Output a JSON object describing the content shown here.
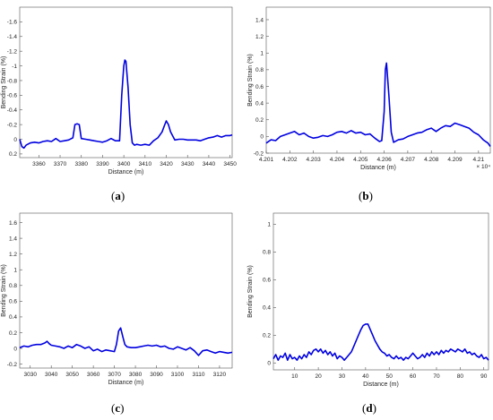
{
  "panels": [
    {
      "label_open": "(",
      "label_letter": "a",
      "label_close": ")"
    },
    {
      "label_open": "(",
      "label_letter": "b",
      "label_close": ")"
    },
    {
      "label_open": "(",
      "label_letter": "c",
      "label_close": ")"
    },
    {
      "label_open": "(",
      "label_letter": "d",
      "label_close": ")"
    }
  ],
  "chart_data": [
    {
      "type": "line",
      "xlabel": "Distance (m)",
      "ylabel": "Bending Strain (%)",
      "xlim": [
        3351,
        3451
      ],
      "ylim": [
        0.25,
        -1.8
      ],
      "y_reversed": true,
      "grid": false,
      "color": "#0000e0",
      "xticks": [
        3360,
        3370,
        3380,
        3390,
        3400,
        3410,
        3420,
        3430,
        3440,
        3450
      ],
      "yticks": [
        -1.6,
        -1.4,
        -1.2,
        -1,
        -0.8,
        -0.6,
        -0.4,
        -0.2,
        0,
        0.2
      ],
      "ytick_labels": [
        "-1.6",
        "-1.4",
        "-1.2",
        "-1",
        "-0.8",
        "-0.6",
        "-0.4",
        "-0.2",
        "0",
        "0.2"
      ],
      "x": [
        3351,
        3352,
        3353,
        3354,
        3356,
        3358,
        3360,
        3362,
        3364,
        3366,
        3368,
        3370,
        3372,
        3374,
        3376,
        3377,
        3378,
        3379,
        3380,
        3382,
        3384,
        3386,
        3388,
        3390,
        3392,
        3394,
        3396,
        3398,
        3399,
        3400,
        3400.5,
        3401,
        3402,
        3403,
        3404,
        3405,
        3406,
        3408,
        3410,
        3412,
        3414,
        3416,
        3418,
        3419,
        3420,
        3421,
        3422,
        3424,
        3426,
        3428,
        3430,
        3432,
        3434,
        3436,
        3438,
        3440,
        3442,
        3444,
        3446,
        3448,
        3450,
        3451
      ],
      "y": [
        0,
        0.1,
        0.12,
        0.08,
        0.05,
        0.04,
        0.05,
        0.03,
        0.02,
        0.03,
        -0.01,
        0.03,
        0.02,
        0.01,
        -0.02,
        -0.2,
        -0.21,
        -0.2,
        -0.01,
        0,
        0.01,
        0.02,
        0.03,
        0.04,
        0.02,
        -0.01,
        0.02,
        0.02,
        -0.6,
        -1.0,
        -1.08,
        -1.06,
        -0.7,
        -0.2,
        0.05,
        0.08,
        0.07,
        0.08,
        0.07,
        0.08,
        0.02,
        -0.02,
        -0.1,
        -0.18,
        -0.25,
        -0.2,
        -0.1,
        0.01,
        0,
        0,
        0.01,
        0.01,
        0.01,
        0.02,
        0,
        -0.02,
        -0.03,
        -0.05,
        -0.03,
        -0.05,
        -0.05,
        -0.06
      ]
    },
    {
      "type": "line",
      "xlabel": "Distance (m)",
      "ylabel": "Bending Strain (%)",
      "x_exponent_label": "× 10⁴",
      "xlim": [
        4.201,
        4.2105
      ],
      "ylim": [
        -0.2,
        1.55
      ],
      "grid": false,
      "color": "#0000e0",
      "xticks": [
        4.201,
        4.202,
        4.203,
        4.204,
        4.205,
        4.206,
        4.207,
        4.208,
        4.209,
        4.21
      ],
      "xtick_labels": [
        "4.201",
        "4.202",
        "4.203",
        "4.204",
        "4.205",
        "4.206",
        "4.207",
        "4.208",
        "4.209",
        "4.21"
      ],
      "yticks": [
        -0.2,
        0,
        0.2,
        0.4,
        0.6,
        0.8,
        1,
        1.2,
        1.4
      ],
      "ytick_labels": [
        "-0.2",
        "0",
        "0.2",
        "0.4",
        "0.6",
        "0.8",
        "1",
        "1.2",
        "1.4"
      ],
      "x": [
        4.201,
        4.2012,
        4.2014,
        4.2016,
        4.2018,
        4.202,
        4.2022,
        4.2024,
        4.2026,
        4.2028,
        4.203,
        4.2032,
        4.2034,
        4.2036,
        4.2038,
        4.204,
        4.2042,
        4.2044,
        4.2046,
        4.2048,
        4.205,
        4.2052,
        4.2054,
        4.2056,
        4.2058,
        4.2059,
        4.206,
        4.20605,
        4.2061,
        4.2062,
        4.2063,
        4.2064,
        4.2066,
        4.2068,
        4.207,
        4.2072,
        4.2074,
        4.2076,
        4.2078,
        4.208,
        4.2082,
        4.2084,
        4.2086,
        4.2088,
        4.209,
        4.2092,
        4.2094,
        4.2096,
        4.2098,
        4.21,
        4.2102,
        4.2104,
        4.2105
      ],
      "y": [
        -0.08,
        -0.04,
        -0.05,
        0,
        0.02,
        0.04,
        0.06,
        0.02,
        0.04,
        0,
        -0.02,
        -0.01,
        0.01,
        0,
        0.02,
        0.05,
        0.06,
        0.04,
        0.07,
        0.04,
        0.05,
        0.02,
        0.03,
        -0.02,
        -0.06,
        -0.05,
        0.3,
        0.8,
        0.88,
        0.5,
        0.05,
        -0.07,
        -0.04,
        -0.03,
        0,
        0.02,
        0.04,
        0.05,
        0.08,
        0.1,
        0.06,
        0.1,
        0.13,
        0.12,
        0.16,
        0.14,
        0.12,
        0.1,
        0.05,
        0.02,
        -0.04,
        -0.08,
        -0.12
      ]
    },
    {
      "type": "line",
      "xlabel": "Distance (m)",
      "ylabel": "Bending Strain (%)",
      "xlim": [
        3025,
        3126
      ],
      "ylim": [
        -0.25,
        1.72
      ],
      "grid": false,
      "color": "#0000e0",
      "xticks": [
        3030,
        3040,
        3050,
        3060,
        3070,
        3080,
        3090,
        3100,
        3110,
        3120
      ],
      "yticks": [
        -0.2,
        0,
        0.2,
        0.4,
        0.6,
        0.8,
        1,
        1.2,
        1.4,
        1.6
      ],
      "ytick_labels": [
        "-0.2",
        "0",
        "0.2",
        "0.4",
        "0.6",
        "0.8",
        "1",
        "1.2",
        "1.4",
        "1.6"
      ],
      "x": [
        3025,
        3027,
        3029,
        3031,
        3033,
        3035,
        3037,
        3038,
        3039,
        3040,
        3042,
        3044,
        3046,
        3048,
        3050,
        3052,
        3054,
        3056,
        3058,
        3060,
        3062,
        3064,
        3066,
        3068,
        3070,
        3071,
        3072,
        3073,
        3074,
        3075,
        3076,
        3078,
        3080,
        3082,
        3084,
        3086,
        3088,
        3090,
        3092,
        3094,
        3096,
        3098,
        3100,
        3102,
        3104,
        3106,
        3108,
        3110,
        3112,
        3114,
        3116,
        3118,
        3120,
        3122,
        3124,
        3126
      ],
      "y": [
        0.01,
        0.03,
        0.02,
        0.04,
        0.05,
        0.05,
        0.07,
        0.09,
        0.06,
        0.04,
        0.03,
        0.02,
        0,
        0.03,
        0.01,
        0.05,
        0.03,
        0,
        0.02,
        -0.03,
        -0.01,
        -0.04,
        -0.02,
        -0.03,
        -0.04,
        0.05,
        0.22,
        0.26,
        0.15,
        0.05,
        0.02,
        0.01,
        0.01,
        0.02,
        0.03,
        0.04,
        0.03,
        0.04,
        0.02,
        0.03,
        0,
        -0.01,
        0.02,
        0,
        -0.02,
        0.01,
        -0.03,
        -0.09,
        -0.03,
        -0.02,
        -0.04,
        -0.06,
        -0.04,
        -0.05,
        -0.06,
        -0.05
      ]
    },
    {
      "type": "line",
      "xlabel": "Distance (m)",
      "ylabel": "Bending Strain (%)",
      "xlim": [
        1,
        92
      ],
      "ylim": [
        -0.05,
        1.08
      ],
      "grid": false,
      "color": "#0000e0",
      "xticks": [
        10,
        20,
        30,
        40,
        50,
        60,
        70,
        80,
        90
      ],
      "yticks": [
        0,
        0.2,
        0.4,
        0.6,
        0.8,
        1
      ],
      "ytick_labels": [
        "0",
        "0.2",
        "0.4",
        "0.6",
        "0.8",
        "1"
      ],
      "x": [
        1,
        2,
        3,
        4,
        5,
        6,
        7,
        8,
        9,
        10,
        11,
        12,
        13,
        14,
        15,
        16,
        17,
        18,
        19,
        20,
        21,
        22,
        23,
        24,
        25,
        26,
        27,
        28,
        29,
        30,
        31,
        32,
        33,
        34,
        35,
        36,
        37,
        38,
        39,
        40,
        41,
        42,
        43,
        44,
        45,
        46,
        47,
        48,
        49,
        50,
        51,
        52,
        53,
        54,
        55,
        56,
        57,
        58,
        59,
        60,
        61,
        62,
        63,
        64,
        65,
        66,
        67,
        68,
        69,
        70,
        71,
        72,
        73,
        74,
        75,
        76,
        77,
        78,
        79,
        80,
        81,
        82,
        83,
        84,
        85,
        86,
        87,
        88,
        89,
        90,
        91,
        92
      ],
      "y": [
        0.03,
        0.06,
        0.02,
        0.05,
        0.04,
        0.07,
        0.02,
        0.06,
        0.03,
        0.04,
        0.02,
        0.05,
        0.03,
        0.06,
        0.04,
        0.08,
        0.06,
        0.09,
        0.1,
        0.08,
        0.1,
        0.07,
        0.09,
        0.06,
        0.08,
        0.05,
        0.07,
        0.03,
        0.05,
        0.04,
        0.02,
        0.04,
        0.06,
        0.08,
        0.12,
        0.16,
        0.2,
        0.24,
        0.27,
        0.28,
        0.28,
        0.24,
        0.2,
        0.16,
        0.13,
        0.1,
        0.08,
        0.07,
        0.05,
        0.06,
        0.04,
        0.03,
        0.05,
        0.03,
        0.04,
        0.02,
        0.04,
        0.03,
        0.05,
        0.07,
        0.05,
        0.03,
        0.04,
        0.06,
        0.04,
        0.07,
        0.05,
        0.08,
        0.06,
        0.08,
        0.06,
        0.09,
        0.07,
        0.09,
        0.08,
        0.1,
        0.09,
        0.08,
        0.1,
        0.09,
        0.08,
        0.1,
        0.07,
        0.08,
        0.06,
        0.07,
        0.05,
        0.04,
        0.06,
        0.03,
        0.04,
        0.02
      ]
    }
  ]
}
